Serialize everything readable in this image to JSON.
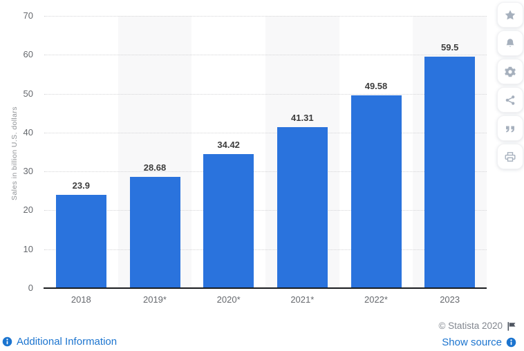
{
  "chart_data": {
    "type": "bar",
    "categories": [
      "2018",
      "2019*",
      "2020*",
      "2021*",
      "2022*",
      "2023"
    ],
    "values": [
      23.9,
      28.68,
      34.42,
      41.31,
      49.58,
      59.5
    ],
    "value_labels": [
      "23.9",
      "28.68",
      "34.42",
      "41.31",
      "49.58",
      "59.5"
    ],
    "title": "",
    "xlabel": "",
    "ylabel": "Sales in billion U.S. dollars",
    "ylim": [
      0,
      70
    ],
    "yticks": [
      0,
      10,
      20,
      30,
      40,
      50,
      60,
      70
    ],
    "grid": true,
    "legend": "none",
    "bar_color": "#2a73dd",
    "band_color": "#f8f8f9"
  },
  "sidebar": {
    "icons": [
      "star-icon",
      "bell-icon",
      "gear-icon",
      "share-icon",
      "quote-icon",
      "print-icon"
    ]
  },
  "footer": {
    "additional_info_label": "Additional Information",
    "copyright": "© Statista 2020",
    "show_source_label": "Show source"
  },
  "colors": {
    "bar": "#2a73dd",
    "link_blue": "#1b74cf",
    "copyright_grey": "#82878f",
    "rail_icon_grey": "#a6b0bd",
    "axis_black": "#191b1e"
  }
}
